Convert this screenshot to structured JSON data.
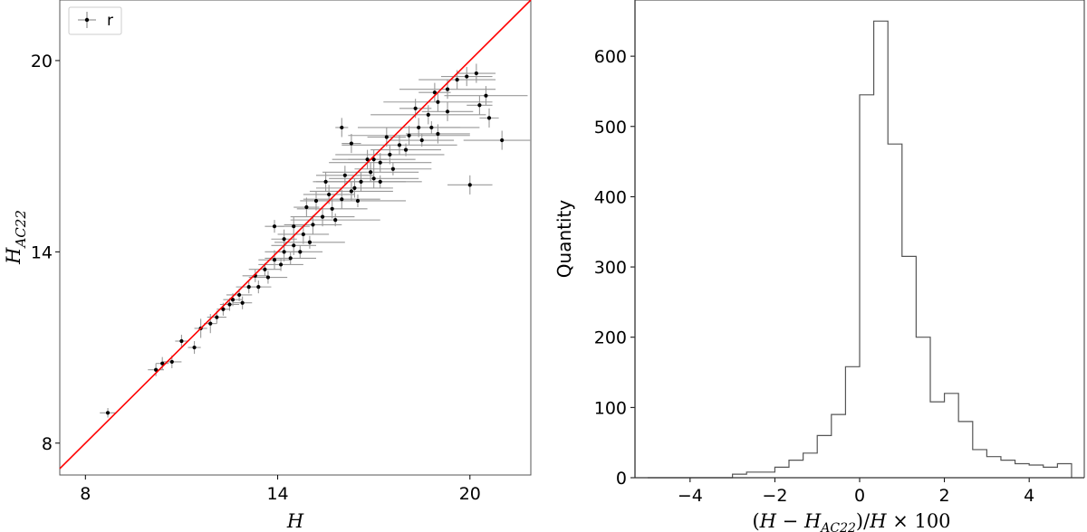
{
  "chart_data": [
    {
      "type": "scatter",
      "xlabel": "H",
      "ylabel": "H_AC22",
      "ylabel_main": "H",
      "ylabel_sub": "AC22",
      "xlim": [
        7.2,
        21.9
      ],
      "ylim": [
        7.0,
        21.9
      ],
      "xticks": [
        8,
        14,
        20
      ],
      "yticks": [
        8,
        14,
        20
      ],
      "grid": false,
      "legend": {
        "position": "top-left",
        "entries": [
          "r"
        ]
      },
      "reference_line": {
        "slope": 1,
        "intercept": 0,
        "color": "#ff0000"
      },
      "marker_color": "#000000",
      "errorbar_color": "#999999",
      "series": [
        {
          "name": "r",
          "points": [
            [
              8.7,
              8.95,
              0.25,
              0.15
            ],
            [
              10.2,
              10.3,
              0.25,
              0.2
            ],
            [
              10.4,
              10.5,
              0.2,
              0.2
            ],
            [
              10.7,
              10.55,
              0.3,
              0.2
            ],
            [
              11.0,
              11.2,
              0.2,
              0.2
            ],
            [
              11.4,
              11.0,
              0.2,
              0.2
            ],
            [
              11.6,
              11.6,
              0.2,
              0.3
            ],
            [
              11.9,
              11.75,
              0.2,
              0.3
            ],
            [
              12.1,
              11.95,
              0.3,
              0.2
            ],
            [
              12.3,
              12.2,
              0.2,
              0.2
            ],
            [
              12.5,
              12.35,
              0.3,
              0.2
            ],
            [
              12.8,
              12.65,
              0.4,
              0.2
            ],
            [
              13.1,
              12.9,
              0.4,
              0.2
            ],
            [
              13.3,
              13.25,
              0.4,
              0.2
            ],
            [
              13.6,
              13.45,
              0.5,
              0.2
            ],
            [
              13.9,
              13.75,
              0.5,
              0.3
            ],
            [
              14.2,
              14.0,
              0.6,
              0.3
            ],
            [
              14.5,
              14.2,
              0.7,
              0.3
            ],
            [
              14.8,
              14.55,
              0.8,
              0.3
            ],
            [
              15.1,
              14.85,
              0.9,
              0.3
            ],
            [
              15.4,
              15.1,
              1.0,
              0.3
            ],
            [
              15.7,
              15.35,
              1.1,
              0.3
            ],
            [
              16.0,
              15.65,
              1.2,
              0.3
            ],
            [
              16.3,
              15.9,
              1.3,
              0.3
            ],
            [
              16.6,
              16.2,
              1.4,
              0.3
            ],
            [
              16.9,
              16.5,
              1.5,
              0.3
            ],
            [
              17.2,
              16.8,
              1.6,
              0.3
            ],
            [
              17.5,
              17.05,
              1.7,
              0.3
            ],
            [
              17.8,
              17.35,
              1.8,
              0.3
            ],
            [
              18.1,
              17.65,
              1.9,
              0.3
            ],
            [
              18.4,
              17.9,
              1.9,
              0.3
            ],
            [
              18.7,
              18.3,
              1.8,
              0.3
            ],
            [
              19.0,
              18.7,
              1.7,
              0.3
            ],
            [
              19.3,
              19.1,
              1.5,
              0.3
            ],
            [
              19.6,
              19.4,
              1.2,
              0.3
            ],
            [
              19.9,
              19.5,
              0.8,
              0.3
            ],
            [
              20.2,
              19.6,
              0.6,
              0.3
            ],
            [
              20.3,
              18.6,
              0.4,
              0.3
            ],
            [
              20.5,
              18.9,
              1.3,
              0.3
            ],
            [
              20.6,
              18.2,
              0.3,
              0.3
            ],
            [
              21.0,
              17.5,
              1.2,
              0.3
            ],
            [
              20.0,
              16.1,
              0.7,
              0.3
            ],
            [
              19.0,
              17.7,
              1.0,
              0.3
            ],
            [
              19.3,
              18.4,
              0.8,
              0.3
            ],
            [
              17.0,
              16.3,
              1.4,
              0.3
            ],
            [
              16.3,
              17.4,
              0.3,
              0.3
            ],
            [
              16.0,
              17.9,
              0.2,
              0.3
            ],
            [
              15.5,
              16.2,
              0.4,
              0.3
            ],
            [
              15.2,
              15.6,
              0.5,
              0.3
            ],
            [
              14.9,
              15.4,
              0.4,
              0.3
            ],
            [
              14.5,
              14.8,
              0.5,
              0.3
            ],
            [
              13.9,
              14.8,
              0.3,
              0.2
            ],
            [
              14.2,
              14.4,
              0.4,
              0.3
            ],
            [
              14.7,
              14.0,
              0.7,
              0.2
            ],
            [
              15.0,
              14.3,
              1.1,
              0.2
            ],
            [
              15.8,
              15.0,
              1.4,
              0.2
            ],
            [
              16.5,
              15.6,
              1.5,
              0.2
            ],
            [
              17.2,
              16.2,
              1.3,
              0.2
            ],
            [
              17.6,
              16.6,
              1.2,
              0.2
            ],
            [
              18.0,
              17.2,
              1.1,
              0.2
            ],
            [
              18.5,
              17.5,
              1.0,
              0.2
            ],
            [
              18.8,
              17.9,
              0.9,
              0.2
            ],
            [
              13.4,
              12.9,
              0.4,
              0.2
            ],
            [
              13.7,
              13.2,
              0.6,
              0.2
            ],
            [
              14.1,
              13.6,
              0.7,
              0.2
            ],
            [
              14.4,
              13.8,
              0.8,
              0.2
            ],
            [
              12.6,
              12.5,
              0.3,
              0.2
            ],
            [
              12.9,
              12.4,
              0.3,
              0.2
            ],
            [
              16.8,
              16.9,
              0.6,
              0.3
            ],
            [
              17.4,
              17.6,
              0.6,
              0.3
            ],
            [
              18.3,
              18.5,
              0.5,
              0.3
            ],
            [
              18.9,
              19.0,
              0.5,
              0.3
            ],
            [
              15.6,
              15.8,
              0.8,
              0.3
            ],
            [
              16.1,
              16.4,
              0.9,
              0.3
            ],
            [
              16.4,
              16.0,
              1.2,
              0.3
            ],
            [
              17.0,
              16.9,
              1.3,
              0.3
            ]
          ]
        }
      ]
    },
    {
      "type": "bar",
      "style": "step-histogram",
      "xlabel": "(H - H_AC22)/H × 100",
      "xlabel_parts": [
        "(",
        "H",
        " − ",
        "H",
        "AC22",
        ")/",
        "H",
        " × 100"
      ],
      "ylabel": "Quantity",
      "xlim": [
        -5.3,
        5.3
      ],
      "ylim": [
        0,
        680
      ],
      "xticks": [
        -4,
        -2,
        0,
        2,
        4
      ],
      "yticks": [
        0,
        100,
        200,
        300,
        400,
        500,
        600
      ],
      "grid": false,
      "line_color": "#555555",
      "bin_edges": [
        -5.0,
        -4.667,
        -4.333,
        -4.0,
        -3.667,
        -3.333,
        -3.0,
        -2.667,
        -2.333,
        -2.0,
        -1.667,
        -1.333,
        -1.0,
        -0.667,
        -0.333,
        0.0,
        0.333,
        0.667,
        1.0,
        1.333,
        1.667,
        2.0,
        2.333,
        2.667,
        3.0,
        3.333,
        3.667,
        4.0,
        4.333,
        4.667,
        5.0
      ],
      "values": [
        0,
        0,
        0,
        0,
        0,
        0,
        5,
        8,
        8,
        15,
        25,
        35,
        60,
        90,
        158,
        545,
        650,
        475,
        315,
        200,
        108,
        120,
        80,
        40,
        30,
        25,
        20,
        18,
        15,
        20
      ]
    }
  ]
}
